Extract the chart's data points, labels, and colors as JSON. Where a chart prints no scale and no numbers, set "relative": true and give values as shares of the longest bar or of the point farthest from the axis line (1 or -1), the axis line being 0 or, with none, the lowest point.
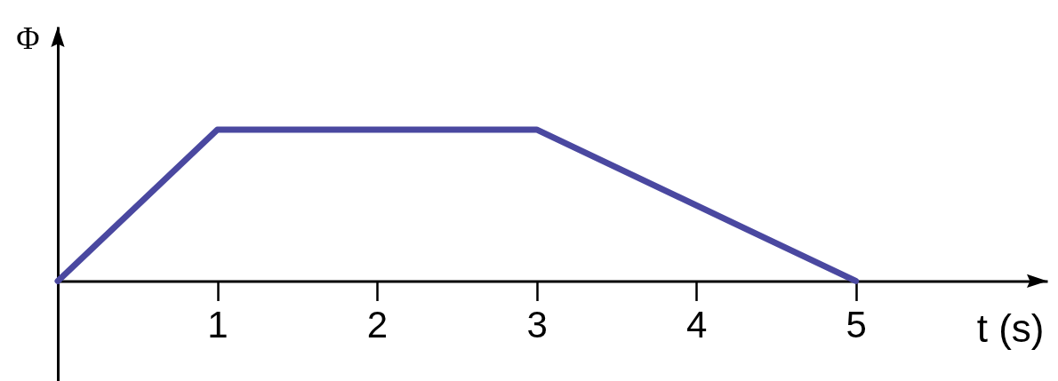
{
  "chart_data": {
    "type": "line",
    "x": [
      0,
      1,
      3,
      5
    ],
    "values": [
      0,
      1,
      1,
      0
    ],
    "color": "#4a48a0",
    "relative": true,
    "xlim": [
      0,
      6.2
    ],
    "xticks": [
      1,
      2,
      3,
      4,
      5
    ],
    "xlabel": "t (s)",
    "ylabel": "Φ",
    "tick_labels": "x"
  }
}
